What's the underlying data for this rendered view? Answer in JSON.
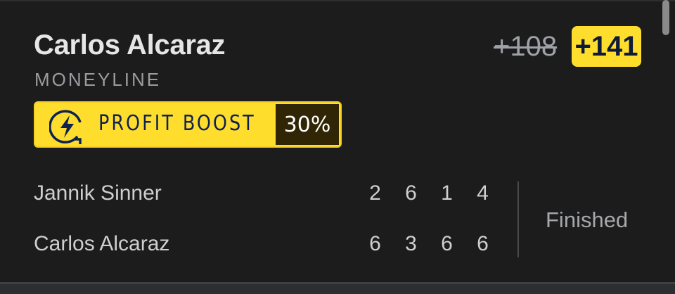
{
  "selection": {
    "player": "Carlos Alcaraz",
    "market": "MONEYLINE"
  },
  "odds": {
    "original": "+108",
    "boosted": "+141"
  },
  "boost": {
    "icon": "lightning-boost-icon",
    "label": "PROFIT BOOST",
    "percent": "30%"
  },
  "match": {
    "players": [
      {
        "name": "Jannik Sinner",
        "sets": [
          "2",
          "6",
          "1",
          "4"
        ]
      },
      {
        "name": "Carlos Alcaraz",
        "sets": [
          "6",
          "3",
          "6",
          "6"
        ]
      }
    ],
    "status": "Finished"
  },
  "colors": {
    "accent": "#ffdd2d",
    "background": "#1c1c1c",
    "navy": "#0e2150"
  }
}
